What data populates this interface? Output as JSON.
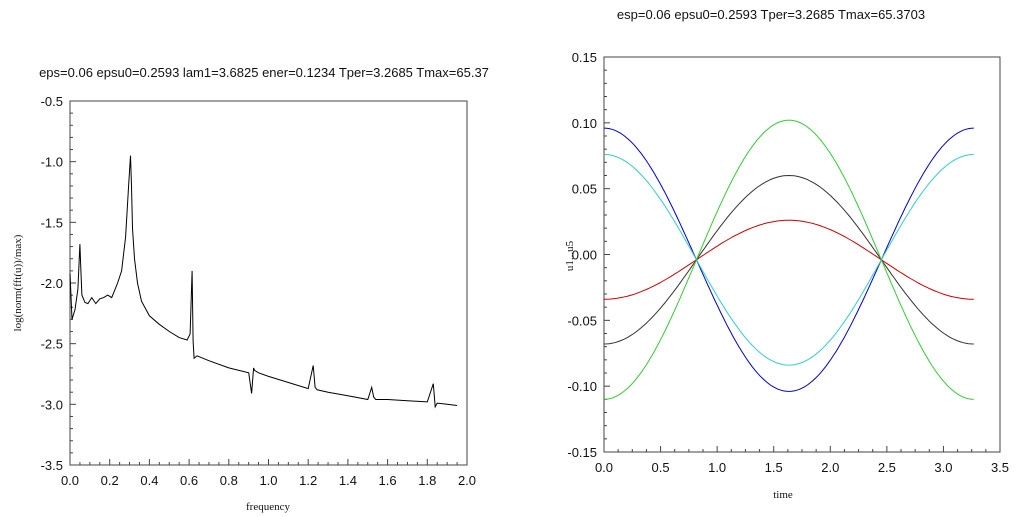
{
  "chart_data": [
    {
      "type": "line",
      "title": "eps=0.06 epsu0=0.2593 lam1=3.6825 ener=0.1234 Tper=3.2685 Tmax=65.37",
      "xlabel": "frequency",
      "ylabel": "log(norm(fft(u))/max)",
      "xlim": [
        0.0,
        2.0
      ],
      "ylim": [
        -3.5,
        -0.5
      ],
      "xticks": [
        "0.0",
        "0.2",
        "0.4",
        "0.6",
        "0.8",
        "1.0",
        "1.2",
        "1.4",
        "1.6",
        "1.8",
        "2.0"
      ],
      "yticks": [
        "-0.5",
        "-1.0",
        "-1.5",
        "-2.0",
        "-2.5",
        "-3.0",
        "-3.5"
      ],
      "grid": false,
      "series": [
        {
          "color": "#000000",
          "x": [
            0.0,
            0.01,
            0.025,
            0.04,
            0.05,
            0.055,
            0.06,
            0.075,
            0.09,
            0.11,
            0.13,
            0.15,
            0.17,
            0.19,
            0.21,
            0.22,
            0.24,
            0.26,
            0.28,
            0.295,
            0.305,
            0.31,
            0.315,
            0.325,
            0.34,
            0.36,
            0.4,
            0.45,
            0.5,
            0.55,
            0.59,
            0.605,
            0.615,
            0.62,
            0.625,
            0.64,
            0.7,
            0.8,
            0.9,
            0.915,
            0.925,
            0.93,
            0.95,
            1.0,
            1.1,
            1.2,
            1.225,
            1.235,
            1.245,
            1.3,
            1.4,
            1.5,
            1.52,
            1.53,
            1.54,
            1.6,
            1.7,
            1.8,
            1.83,
            1.84,
            1.85,
            1.9,
            1.95
          ],
          "y": [
            -1.92,
            -2.3,
            -2.22,
            -2.05,
            -1.68,
            -1.9,
            -2.1,
            -2.16,
            -2.17,
            -2.12,
            -2.17,
            -2.13,
            -2.12,
            -2.1,
            -2.12,
            -2.08,
            -2.0,
            -1.9,
            -1.62,
            -1.2,
            -0.95,
            -1.2,
            -1.55,
            -1.8,
            -2.0,
            -2.15,
            -2.27,
            -2.34,
            -2.4,
            -2.45,
            -2.47,
            -2.42,
            -1.9,
            -2.48,
            -2.62,
            -2.6,
            -2.64,
            -2.7,
            -2.74,
            -2.91,
            -2.7,
            -2.72,
            -2.74,
            -2.77,
            -2.82,
            -2.87,
            -2.68,
            -2.86,
            -2.88,
            -2.9,
            -2.93,
            -2.96,
            -2.86,
            -2.94,
            -2.96,
            -2.96,
            -2.97,
            -2.98,
            -2.83,
            -3.02,
            -2.99,
            -3.0,
            -3.01
          ]
        }
      ]
    },
    {
      "type": "line",
      "title": "esp=0.06 epsu0=0.2593 Tper=3.2685 Tmax=65.3703",
      "xlabel": "time",
      "ylabel": "u1...u5",
      "xlim": [
        0.0,
        3.5
      ],
      "ylim": [
        -0.15,
        0.15
      ],
      "xticks": [
        "0.0",
        "0.5",
        "1.0",
        "1.5",
        "2.0",
        "2.5",
        "3.0",
        "3.5"
      ],
      "yticks": [
        "0.15",
        "0.10",
        "0.05",
        "0.00",
        "-0.05",
        "-0.10",
        "-0.15"
      ],
      "grid": false,
      "period": 3.2685,
      "offset": -0.004,
      "series": [
        {
          "color": "#0000cc",
          "amplitude": 0.1
        },
        {
          "color": "#33cccc",
          "amplitude": 0.08
        },
        {
          "color": "#333333",
          "amplitude": -0.064
        },
        {
          "color": "#cc0000",
          "amplitude": -0.03
        },
        {
          "color": "#33cc33",
          "amplitude": -0.106
        }
      ]
    }
  ]
}
